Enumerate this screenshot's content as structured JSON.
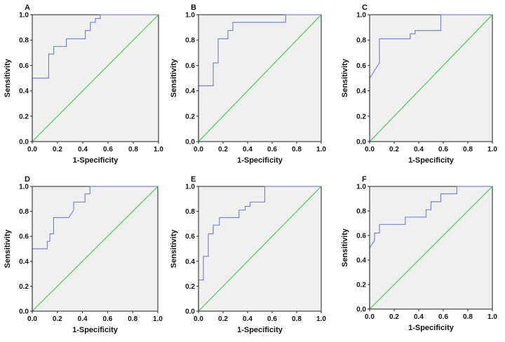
{
  "figure": {
    "description_label": "ROC curves panels A-F"
  },
  "chart_data": [
    {
      "panel": "A",
      "type": "line",
      "xlabel": "1-Specificity",
      "ylabel": "Sensitivity",
      "xlim": [
        0,
        1
      ],
      "ylim": [
        0,
        1
      ],
      "xticks": [
        "0.0",
        "0.2",
        "0.4",
        "0.6",
        "0.8",
        "1.0"
      ],
      "yticks": [
        "0.0",
        "0.2",
        "0.4",
        "0.6",
        "0.8",
        "1.0"
      ],
      "series": [
        {
          "name": "ROC curve",
          "color": "#7b86c4",
          "x": [
            0,
            0,
            0.13,
            0.13,
            0.17,
            0.17,
            0.27,
            0.27,
            0.42,
            0.42,
            0.46,
            0.46,
            0.5,
            0.5,
            0.54,
            0.54,
            1.0
          ],
          "y": [
            0,
            0.5,
            0.5,
            0.69,
            0.69,
            0.75,
            0.75,
            0.81,
            0.81,
            0.875,
            0.875,
            0.94,
            0.94,
            0.97,
            0.97,
            1.0,
            1.0
          ]
        },
        {
          "name": "Reference line",
          "color": "#4dc45c",
          "x": [
            0,
            1
          ],
          "y": [
            0,
            1
          ]
        }
      ]
    },
    {
      "panel": "B",
      "type": "line",
      "xlabel": "1-Specificity",
      "ylabel": "Sensitivity",
      "xlim": [
        0,
        1
      ],
      "ylim": [
        0,
        1
      ],
      "xticks": [
        "0.0",
        "0.2",
        "0.4",
        "0.6",
        "0.8",
        "1.0"
      ],
      "yticks": [
        "0.0",
        "0.2",
        "0.4",
        "0.6",
        "0.8",
        "1.0"
      ],
      "series": [
        {
          "name": "ROC curve",
          "color": "#7b86c4",
          "x": [
            0,
            0,
            0.12,
            0.12,
            0.16,
            0.16,
            0.24,
            0.24,
            0.28,
            0.28,
            0.71,
            0.71,
            1.0
          ],
          "y": [
            0,
            0.44,
            0.44,
            0.62,
            0.62,
            0.81,
            0.81,
            0.875,
            0.875,
            0.94,
            0.94,
            1.0,
            1.0
          ]
        },
        {
          "name": "Reference line",
          "color": "#4dc45c",
          "x": [
            0,
            1
          ],
          "y": [
            0,
            1
          ]
        }
      ]
    },
    {
      "panel": "C",
      "type": "line",
      "xlabel": "1-Specificity",
      "ylabel": "Sensitivity",
      "xlim": [
        0,
        1
      ],
      "ylim": [
        0,
        1
      ],
      "xticks": [
        "0.0",
        "0.2",
        "0.4",
        "0.6",
        "0.8",
        "1.0"
      ],
      "yticks": [
        "0.0",
        "0.2",
        "0.4",
        "0.6",
        "0.8",
        "1.0"
      ],
      "series": [
        {
          "name": "ROC curve",
          "color": "#7b86c4",
          "x": [
            0,
            0,
            0.08,
            0.08,
            0.33,
            0.33,
            0.37,
            0.37,
            0.58,
            0.58,
            1.0
          ],
          "y": [
            0,
            0.5,
            0.62,
            0.81,
            0.81,
            0.85,
            0.85,
            0.875,
            0.875,
            1.0,
            1.0
          ]
        },
        {
          "name": "Reference line",
          "color": "#4dc45c",
          "x": [
            0,
            1
          ],
          "y": [
            0,
            1
          ]
        }
      ]
    },
    {
      "panel": "D",
      "type": "line",
      "xlabel": "1-Specificity",
      "ylabel": "Sensitivity",
      "xlim": [
        0,
        1
      ],
      "ylim": [
        0,
        1
      ],
      "xticks": [
        "0.0",
        "0.2",
        "0.4",
        "0.6",
        "0.8",
        "1.0"
      ],
      "yticks": [
        "0.0",
        "0.2",
        "0.4",
        "0.6",
        "0.8",
        "1.0"
      ],
      "series": [
        {
          "name": "ROC curve",
          "color": "#7b86c4",
          "x": [
            0,
            0,
            0.12,
            0.12,
            0.14,
            0.14,
            0.17,
            0.17,
            0.29,
            0.29,
            0.33,
            0.33,
            0.42,
            0.42,
            0.46,
            0.46,
            1.0
          ],
          "y": [
            0,
            0.5,
            0.5,
            0.56,
            0.56,
            0.62,
            0.62,
            0.75,
            0.75,
            0.75,
            0.81,
            0.875,
            0.875,
            0.94,
            0.94,
            1.0,
            1.0
          ]
        },
        {
          "name": "Reference line",
          "color": "#4dc45c",
          "x": [
            0,
            1
          ],
          "y": [
            0,
            1
          ]
        }
      ]
    },
    {
      "panel": "E",
      "type": "line",
      "xlabel": "1-Specificity",
      "ylabel": "Sensitivity",
      "xlim": [
        0,
        1
      ],
      "ylim": [
        0,
        1
      ],
      "xticks": [
        "0.0",
        "0.2",
        "0.4",
        "0.6",
        "0.8",
        "1.0"
      ],
      "yticks": [
        "0.0",
        "0.2",
        "0.4",
        "0.6",
        "0.8",
        "1.0"
      ],
      "series": [
        {
          "name": "ROC curve",
          "color": "#7b86c4",
          "x": [
            0,
            0,
            0.04,
            0.04,
            0.08,
            0.08,
            0.12,
            0.12,
            0.17,
            0.17,
            0.33,
            0.33,
            0.38,
            0.38,
            0.42,
            0.42,
            0.54,
            0.54,
            1.0
          ],
          "y": [
            0,
            0.25,
            0.25,
            0.44,
            0.44,
            0.62,
            0.62,
            0.69,
            0.69,
            0.75,
            0.75,
            0.81,
            0.81,
            0.84,
            0.84,
            0.875,
            0.875,
            1.0,
            1.0
          ]
        },
        {
          "name": "Reference line",
          "color": "#4dc45c",
          "x": [
            0,
            1
          ],
          "y": [
            0,
            1
          ]
        }
      ]
    },
    {
      "panel": "F",
      "type": "line",
      "xlabel": "1-Specificity",
      "ylabel": "Sensitivity",
      "xlim": [
        0,
        1
      ],
      "ylim": [
        0,
        1
      ],
      "xticks": [
        "0.0",
        "0.2",
        "0.4",
        "0.6",
        "0.8",
        "1.0"
      ],
      "yticks": [
        "0.0",
        "0.2",
        "0.4",
        "0.6",
        "0.8",
        "1.0"
      ],
      "series": [
        {
          "name": "ROC curve",
          "color": "#7b86c4",
          "x": [
            0,
            0,
            0.04,
            0.04,
            0.08,
            0.08,
            0.29,
            0.29,
            0.46,
            0.46,
            0.5,
            0.5,
            0.58,
            0.58,
            0.71,
            0.71,
            1.0
          ],
          "y": [
            0,
            0.5,
            0.56,
            0.62,
            0.62,
            0.69,
            0.69,
            0.75,
            0.75,
            0.81,
            0.81,
            0.875,
            0.875,
            0.94,
            0.94,
            1.0,
            1.0
          ]
        },
        {
          "name": "Reference line",
          "color": "#4dc45c",
          "x": [
            0,
            1
          ],
          "y": [
            0,
            1
          ]
        }
      ]
    }
  ]
}
